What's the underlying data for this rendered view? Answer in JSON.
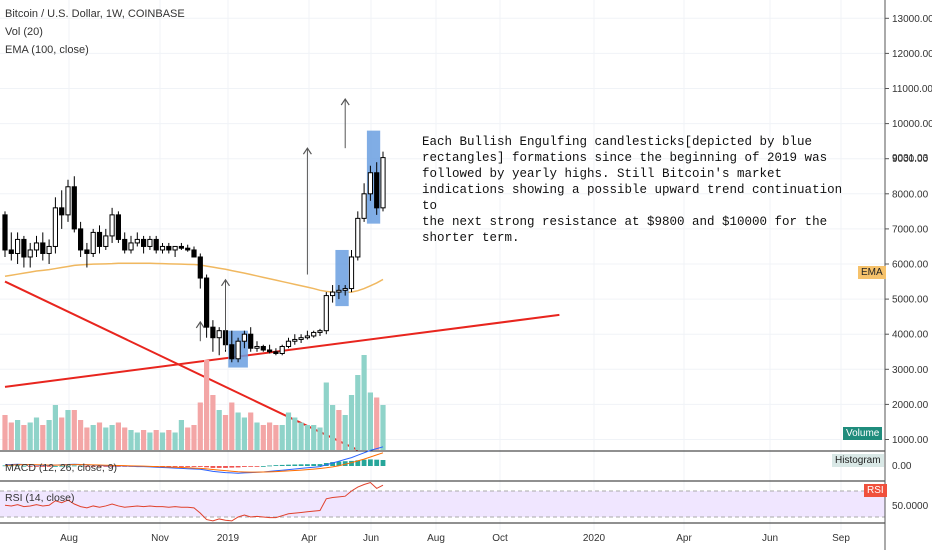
{
  "header": {
    "symbol_line": "Bitcoin / U.S. Dollar, 1W, COINBASE",
    "vol_line": "Vol (20)",
    "ema_line": "EMA (100, close)"
  },
  "annotation": {
    "text": "Each Bullish Engulfing candlesticks[depicted by blue\nrectangles] formations since the beginning of 2019 was\nfollowed by yearly highs. Still Bitcoin's market\nindications showing a possible upward trend continuation to\nthe next strong resistance at $9800 and $10000 for the\nshorter term."
  },
  "tags": {
    "ema": "EMA",
    "volume": "Volume",
    "histogram": "Histogram",
    "rsi": "RSI",
    "last_price": "9031.03",
    "macd_value": "0.00",
    "rsi_value": "50.0000"
  },
  "macd_legend": "MACD (12, 26, close, 9)",
  "rsi_legend": "RSI (14, close)",
  "colors": {
    "bull_volume": "#8fd3c9",
    "bear_volume": "#f3a6a6",
    "ema_line": "#f0b860",
    "trendline": "#e8251e",
    "engulf_box": "#6a9fe0",
    "rsi_band": "#f0e6ff",
    "macd_line": "#2962ff",
    "signal_line": "#ff6d00",
    "axis_text": "#333333"
  },
  "chart_data": {
    "type": "candlestick",
    "y_axis": {
      "ticks": [
        "13000.00",
        "12000.00",
        "11000.00",
        "10000.00",
        "9000.00",
        "8000.00",
        "7000.00",
        "6000.00",
        "5000.00",
        "4000.00",
        "3000.00",
        "2000.00",
        "1000.00"
      ],
      "ylim": [
        700,
        13500
      ]
    },
    "x_axis": {
      "labels": [
        "Aug",
        "Nov",
        "2019",
        "Apr",
        "Jun",
        "Aug",
        "Oct",
        "2020",
        "Apr",
        "Jun",
        "Sep"
      ]
    },
    "ohlc": [
      [
        7400,
        7500,
        6200,
        6400
      ],
      [
        6400,
        6900,
        6100,
        6300
      ],
      [
        6300,
        6900,
        6000,
        6700
      ],
      [
        6700,
        6800,
        5900,
        6200
      ],
      [
        6200,
        6600,
        5900,
        6400
      ],
      [
        6400,
        6800,
        6200,
        6600
      ],
      [
        6600,
        6900,
        6100,
        6300
      ],
      [
        6300,
        6700,
        6000,
        6500
      ],
      [
        6500,
        7900,
        6300,
        7600
      ],
      [
        7600,
        8100,
        7000,
        7400
      ],
      [
        7400,
        8400,
        7200,
        8200
      ],
      [
        8200,
        8500,
        6900,
        7000
      ],
      [
        7000,
        7200,
        6200,
        6400
      ],
      [
        6400,
        6600,
        5900,
        6300
      ],
      [
        6300,
        7000,
        6200,
        6900
      ],
      [
        6900,
        7100,
        6300,
        6500
      ],
      [
        6500,
        7000,
        6400,
        6800
      ],
      [
        6800,
        7600,
        6600,
        7400
      ],
      [
        7400,
        7500,
        6600,
        6700
      ],
      [
        6700,
        6900,
        6300,
        6400
      ],
      [
        6400,
        6800,
        6300,
        6600
      ],
      [
        6600,
        6900,
        6500,
        6700
      ],
      [
        6700,
        6800,
        6300,
        6500
      ],
      [
        6500,
        6800,
        6400,
        6700
      ],
      [
        6700,
        6800,
        6300,
        6400
      ],
      [
        6400,
        6600,
        6300,
        6500
      ],
      [
        6500,
        6600,
        6300,
        6400
      ],
      [
        6400,
        6500,
        6200,
        6500
      ],
      [
        6500,
        6600,
        6400,
        6450
      ],
      [
        6450,
        6550,
        6350,
        6400
      ],
      [
        6400,
        6500,
        6300,
        6200
      ],
      [
        6200,
        6300,
        5300,
        5600
      ],
      [
        5600,
        5700,
        3900,
        4200
      ],
      [
        4200,
        4400,
        3500,
        3900
      ],
      [
        3900,
        4200,
        3400,
        4100
      ],
      [
        4100,
        4200,
        3500,
        3700
      ],
      [
        3700,
        4100,
        3200,
        3300
      ],
      [
        3300,
        3900,
        3200,
        3800
      ],
      [
        3800,
        4100,
        3600,
        4000
      ],
      [
        4000,
        4200,
        3500,
        3600
      ],
      [
        3600,
        3800,
        3500,
        3650
      ],
      [
        3650,
        3700,
        3500,
        3550
      ],
      [
        3550,
        3700,
        3450,
        3500
      ],
      [
        3500,
        3600,
        3400,
        3450
      ],
      [
        3450,
        3700,
        3400,
        3650
      ],
      [
        3650,
        3900,
        3600,
        3800
      ],
      [
        3800,
        4000,
        3700,
        3850
      ],
      [
        3850,
        4000,
        3750,
        3900
      ],
      [
        3900,
        4100,
        3850,
        3950
      ],
      [
        3950,
        4100,
        3900,
        4050
      ],
      [
        4050,
        4150,
        3950,
        4100
      ],
      [
        4100,
        5200,
        4000,
        5100
      ],
      [
        5100,
        5400,
        4900,
        5200
      ],
      [
        5200,
        5400,
        5000,
        5250
      ],
      [
        5250,
        5400,
        5100,
        5300
      ],
      [
        5300,
        6400,
        5200,
        6200
      ],
      [
        6200,
        7500,
        6100,
        7300
      ],
      [
        7300,
        8300,
        7200,
        8000
      ],
      [
        8000,
        8800,
        7800,
        8600
      ],
      [
        8600,
        8900,
        7400,
        7600
      ],
      [
        7600,
        9200,
        7500,
        9031
      ]
    ],
    "volume": [
      {
        "v": 1400,
        "up": false
      },
      {
        "v": 1100,
        "up": false
      },
      {
        "v": 1200,
        "up": true
      },
      {
        "v": 1000,
        "up": false
      },
      {
        "v": 1100,
        "up": true
      },
      {
        "v": 1300,
        "up": true
      },
      {
        "v": 1000,
        "up": false
      },
      {
        "v": 1200,
        "up": true
      },
      {
        "v": 1800,
        "up": true
      },
      {
        "v": 1300,
        "up": false
      },
      {
        "v": 1600,
        "up": true
      },
      {
        "v": 1600,
        "up": false
      },
      {
        "v": 1200,
        "up": false
      },
      {
        "v": 900,
        "up": false
      },
      {
        "v": 1000,
        "up": true
      },
      {
        "v": 1100,
        "up": false
      },
      {
        "v": 900,
        "up": true
      },
      {
        "v": 1000,
        "up": true
      },
      {
        "v": 1100,
        "up": false
      },
      {
        "v": 900,
        "up": false
      },
      {
        "v": 800,
        "up": true
      },
      {
        "v": 700,
        "up": true
      },
      {
        "v": 800,
        "up": false
      },
      {
        "v": 700,
        "up": true
      },
      {
        "v": 800,
        "up": false
      },
      {
        "v": 700,
        "up": true
      },
      {
        "v": 800,
        "up": false
      },
      {
        "v": 700,
        "up": true
      },
      {
        "v": 1200,
        "up": true
      },
      {
        "v": 900,
        "up": false
      },
      {
        "v": 1000,
        "up": false
      },
      {
        "v": 1900,
        "up": false
      },
      {
        "v": 3600,
        "up": false
      },
      {
        "v": 2200,
        "up": false
      },
      {
        "v": 1600,
        "up": true
      },
      {
        "v": 1400,
        "up": false
      },
      {
        "v": 1900,
        "up": false
      },
      {
        "v": 1500,
        "up": true
      },
      {
        "v": 1300,
        "up": true
      },
      {
        "v": 1500,
        "up": false
      },
      {
        "v": 1100,
        "up": true
      },
      {
        "v": 1000,
        "up": false
      },
      {
        "v": 1100,
        "up": false
      },
      {
        "v": 1000,
        "up": false
      },
      {
        "v": 1000,
        "up": true
      },
      {
        "v": 1500,
        "up": true
      },
      {
        "v": 1300,
        "up": true
      },
      {
        "v": 1100,
        "up": true
      },
      {
        "v": 1000,
        "up": true
      },
      {
        "v": 1000,
        "up": true
      },
      {
        "v": 900,
        "up": true
      },
      {
        "v": 2700,
        "up": true
      },
      {
        "v": 1800,
        "up": true
      },
      {
        "v": 1600,
        "up": false
      },
      {
        "v": 1400,
        "up": true
      },
      {
        "v": 2200,
        "up": true
      },
      {
        "v": 3000,
        "up": true
      },
      {
        "v": 3800,
        "up": true
      },
      {
        "v": 2300,
        "up": true
      },
      {
        "v": 2100,
        "up": false
      },
      {
        "v": 1800,
        "up": true
      }
    ],
    "ema_100": [
      5650,
      5680,
      5710,
      5740,
      5770,
      5800,
      5820,
      5840,
      5870,
      5900,
      5930,
      5960,
      5975,
      5985,
      5995,
      6000,
      6005,
      6010,
      6020,
      6020,
      6020,
      6020,
      6020,
      6020,
      6015,
      6010,
      6005,
      6000,
      5995,
      5990,
      5985,
      5970,
      5940,
      5910,
      5880,
      5850,
      5810,
      5775,
      5740,
      5700,
      5660,
      5620,
      5580,
      5540,
      5500,
      5460,
      5420,
      5380,
      5340,
      5300,
      5250,
      5220,
      5200,
      5190,
      5190,
      5200,
      5240,
      5300,
      5380,
      5460,
      5560
    ],
    "trendlines": [
      {
        "points": [
          [
            0,
            5500
          ],
          [
            56,
            700
          ]
        ],
        "name": ""
      },
      {
        "points": [
          [
            0,
            2500
          ],
          [
            88,
            4550
          ]
        ],
        "name": ""
      }
    ],
    "engulfing_boxes": [
      {
        "from": 36,
        "to": 38,
        "low": 3050,
        "high": 4100
      },
      {
        "from": 53,
        "to": 54,
        "low": 4800,
        "high": 6400
      },
      {
        "from": 58,
        "to": 59,
        "low": 7150,
        "high": 9800
      }
    ],
    "arrows": [
      {
        "x": 35,
        "from": 3550,
        "to": 5550
      },
      {
        "x": 48,
        "from": 5700,
        "to": 9300
      },
      {
        "x": 54,
        "from": 9300,
        "to": 10700
      },
      {
        "x": 31,
        "from": 3800,
        "to": 4350
      }
    ],
    "macd": {
      "macd_line": [
        0.2,
        0.25,
        0.3,
        0.25,
        0.2,
        0.15,
        0.1,
        0.1,
        0.15,
        0.2,
        0.25,
        0.3,
        0.25,
        0.2,
        0.15,
        0.1,
        0.05,
        0.05,
        0.05,
        0.0,
        -0.05,
        -0.1,
        -0.1,
        -0.15,
        -0.2,
        -0.25,
        -0.3,
        -0.35,
        -0.4,
        -0.45,
        -0.5,
        -0.55,
        -0.7,
        -0.9,
        -1.0,
        -1.1,
        -1.15,
        -1.2,
        -1.15,
        -1.1,
        -1.05,
        -1.0,
        -0.9,
        -0.8,
        -0.7,
        -0.6,
        -0.5,
        -0.4,
        -0.3,
        -0.2,
        -0.1,
        0.2,
        0.5,
        0.8,
        1.1,
        1.4,
        1.8,
        2.2,
        2.6,
        2.9,
        3.2
      ],
      "signal_line": [
        0.1,
        0.15,
        0.2,
        0.22,
        0.22,
        0.2,
        0.18,
        0.15,
        0.15,
        0.17,
        0.2,
        0.22,
        0.22,
        0.21,
        0.19,
        0.16,
        0.13,
        0.1,
        0.08,
        0.06,
        0.03,
        0.0,
        -0.03,
        -0.06,
        -0.1,
        -0.13,
        -0.17,
        -0.2,
        -0.25,
        -0.3,
        -0.35,
        -0.4,
        -0.48,
        -0.58,
        -0.68,
        -0.78,
        -0.88,
        -0.96,
        -1.0,
        -1.02,
        -1.02,
        -1.0,
        -0.98,
        -0.94,
        -0.88,
        -0.82,
        -0.75,
        -0.68,
        -0.6,
        -0.52,
        -0.42,
        -0.3,
        -0.15,
        0.05,
        0.3,
        0.55,
        0.85,
        1.15,
        1.5,
        1.85,
        2.2
      ]
    },
    "rsi": [
      48,
      47,
      49,
      46,
      47,
      49,
      47,
      48,
      55,
      52,
      56,
      50,
      46,
      44,
      47,
      45,
      47,
      50,
      47,
      45,
      46,
      47,
      46,
      47,
      46,
      46,
      45,
      46,
      45,
      45,
      44,
      36,
      26,
      24,
      27,
      25,
      24,
      30,
      33,
      30,
      31,
      30,
      29,
      29,
      32,
      35,
      36,
      37,
      38,
      39,
      40,
      58,
      60,
      61,
      62,
      70,
      76,
      80,
      83,
      74,
      79
    ],
    "rsi_bands": [
      30,
      70
    ]
  }
}
